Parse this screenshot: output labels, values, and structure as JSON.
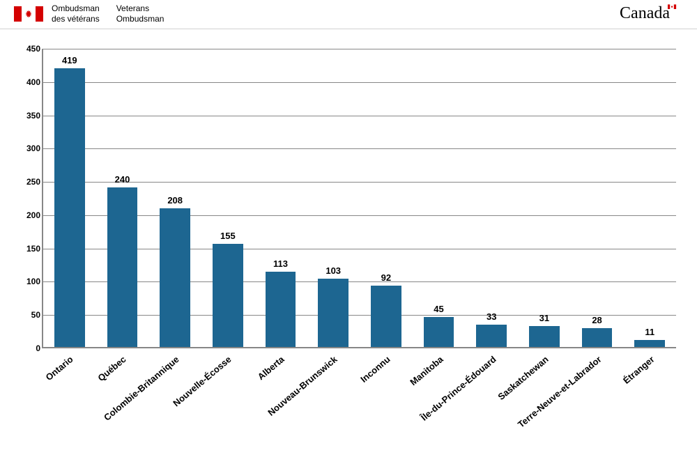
{
  "header": {
    "left_fr_line1": "Ombudsman",
    "left_fr_line2": "des vétérans",
    "left_en_line1": "Veterans",
    "left_en_line2": "Ombudsman",
    "wordmark": "Canada"
  },
  "chart": {
    "type": "bar",
    "categories": [
      "Ontario",
      "Québec",
      "Colombie-Britannique",
      "Nouvelle-Écosse",
      "Alberta",
      "Nouveau-Brunswick",
      "Inconnu",
      "Manitoba",
      "Île-du-Prince-Édouard",
      "Saskatchewan",
      "Terre-Neuve-et-Labrador",
      "Étranger"
    ],
    "values": [
      419,
      240,
      208,
      155,
      113,
      103,
      92,
      45,
      33,
      31,
      28,
      11
    ],
    "bar_color": "#1d6691",
    "ylim": [
      0,
      450
    ],
    "ytick_step": 50,
    "grid_color": "#878787",
    "axis_color": "#878787",
    "background_color": "#ffffff",
    "label_fontsize": 13,
    "label_fontweight": "bold",
    "text_color": "#000000",
    "bar_width": 0.58,
    "xlabel_rotation_deg": -40
  }
}
